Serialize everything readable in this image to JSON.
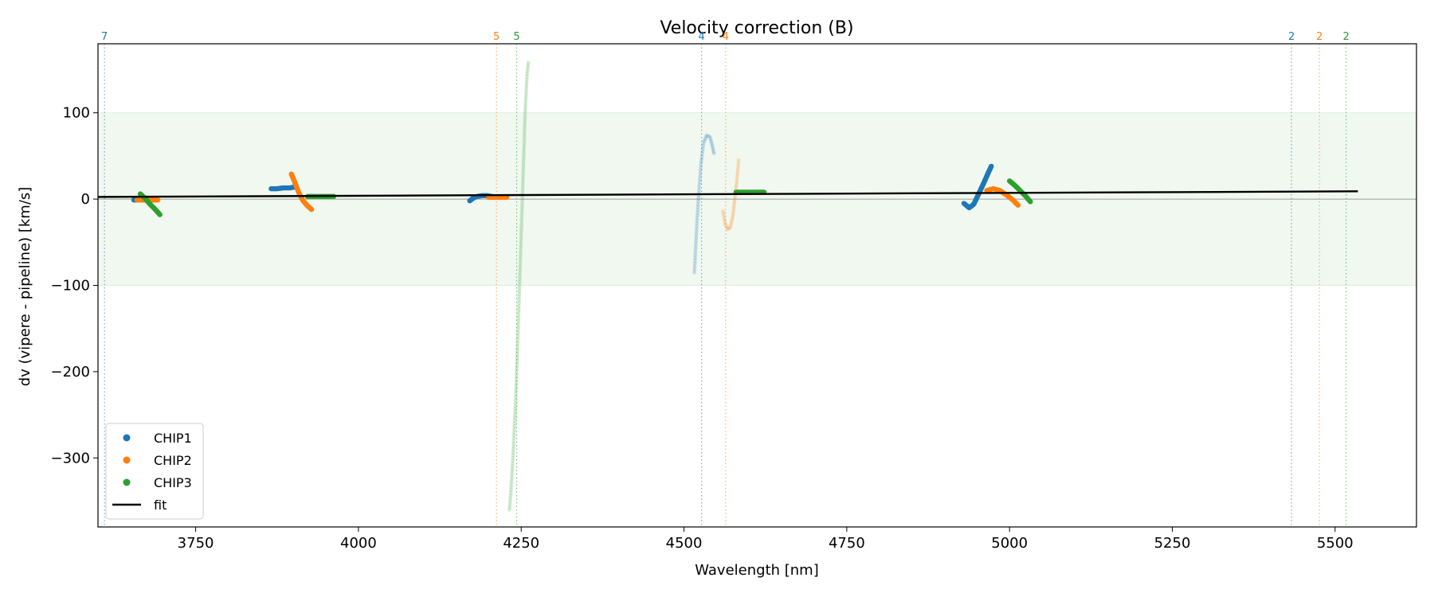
{
  "chart_data": {
    "type": "scatter",
    "title": "Velocity correction (B)",
    "xlabel": "Wavelength [nm]",
    "ylabel": "dv (vipere - pipeline) [km/s]",
    "xlim": [
      3600,
      5625
    ],
    "ylim": [
      -380,
      180
    ],
    "xticks": [
      3750,
      4000,
      4250,
      4500,
      4750,
      5000,
      5250,
      5500
    ],
    "yticks": [
      -300,
      -200,
      -100,
      0,
      100
    ],
    "band": [
      -100,
      100
    ],
    "colors": {
      "CHIP1": "#1f77b4",
      "CHIP2": "#ff7f0e",
      "CHIP3": "#2ca02c",
      "fit": "#000000",
      "band": "#2ca02c"
    },
    "legend": [
      "CHIP1",
      "CHIP2",
      "CHIP3",
      "fit"
    ],
    "fit": {
      "x": [
        3600,
        5535
      ],
      "y": [
        2.5,
        9
      ]
    },
    "markers": [
      {
        "x": 3610,
        "label": "7",
        "series": "CHIP1"
      },
      {
        "x": 4212,
        "label": "5",
        "series": "CHIP2"
      },
      {
        "x": 4243,
        "label": "5",
        "series": "CHIP3"
      },
      {
        "x": 4527,
        "label": "4",
        "series": "CHIP1"
      },
      {
        "x": 4564,
        "label": "4",
        "series": "CHIP2"
      },
      {
        "x": 5433,
        "label": "2",
        "series": "CHIP1"
      },
      {
        "x": 5476,
        "label": "2",
        "series": "CHIP2"
      },
      {
        "x": 5517,
        "label": "2",
        "series": "CHIP3"
      }
    ],
    "segments": [
      {
        "series": "CHIP1",
        "faded": false,
        "points": [
          [
            3655,
            -1
          ],
          [
            3665,
            -1
          ],
          [
            3675,
            -1
          ],
          [
            3685,
            -1
          ]
        ]
      },
      {
        "series": "CHIP2",
        "faded": false,
        "points": [
          [
            3660,
            -1
          ],
          [
            3670,
            -1
          ],
          [
            3680,
            -1
          ],
          [
            3692,
            -1
          ]
        ]
      },
      {
        "series": "CHIP3",
        "faded": false,
        "points": [
          [
            3665,
            6
          ],
          [
            3672,
            1
          ],
          [
            3680,
            -6
          ],
          [
            3688,
            -12
          ],
          [
            3695,
            -18
          ]
        ]
      },
      {
        "series": "CHIP1",
        "faded": false,
        "points": [
          [
            3866,
            12
          ],
          [
            3875,
            12
          ],
          [
            3885,
            13
          ],
          [
            3895,
            13
          ],
          [
            3902,
            14
          ]
        ]
      },
      {
        "series": "CHIP2",
        "faded": false,
        "points": [
          [
            3897,
            29
          ],
          [
            3902,
            20
          ],
          [
            3908,
            8
          ],
          [
            3915,
            -2
          ],
          [
            3922,
            -8
          ],
          [
            3928,
            -12
          ]
        ]
      },
      {
        "series": "CHIP3",
        "faded": false,
        "points": [
          [
            3922,
            3
          ],
          [
            3932,
            3
          ],
          [
            3942,
            3
          ],
          [
            3952,
            3
          ],
          [
            3962,
            3
          ]
        ]
      },
      {
        "series": "CHIP1",
        "faded": false,
        "points": [
          [
            4171,
            -2
          ],
          [
            4176,
            1
          ],
          [
            4182,
            3
          ],
          [
            4190,
            4
          ],
          [
            4198,
            4
          ],
          [
            4205,
            3
          ]
        ]
      },
      {
        "series": "CHIP2",
        "faded": false,
        "points": [
          [
            4200,
            2
          ],
          [
            4210,
            2
          ],
          [
            4220,
            2
          ],
          [
            4228,
            2
          ]
        ]
      },
      {
        "series": "CHIP3",
        "faded": true,
        "points": [
          [
            4232,
            -360
          ],
          [
            4235,
            -330
          ],
          [
            4238,
            -290
          ],
          [
            4241,
            -240
          ],
          [
            4244,
            -180
          ],
          [
            4247,
            -110
          ],
          [
            4250,
            -40
          ],
          [
            4253,
            30
          ],
          [
            4256,
            100
          ],
          [
            4259,
            145
          ],
          [
            4261,
            158
          ]
        ]
      },
      {
        "series": "CHIP1",
        "faded": true,
        "points": [
          [
            4516,
            -85
          ],
          [
            4518,
            -55
          ],
          [
            4520,
            -25
          ],
          [
            4523,
            10
          ],
          [
            4526,
            40
          ],
          [
            4530,
            65
          ],
          [
            4535,
            74
          ],
          [
            4540,
            72
          ],
          [
            4544,
            60
          ],
          [
            4546,
            53
          ]
        ]
      },
      {
        "series": "CHIP2",
        "faded": true,
        "points": [
          [
            4560,
            -14
          ],
          [
            4563,
            -28
          ],
          [
            4567,
            -35
          ],
          [
            4571,
            -33
          ],
          [
            4575,
            -20
          ],
          [
            4578,
            0
          ],
          [
            4581,
            20
          ],
          [
            4584,
            45
          ]
        ]
      },
      {
        "series": "CHIP3",
        "faded": false,
        "points": [
          [
            4580,
            8
          ],
          [
            4592,
            8
          ],
          [
            4604,
            8
          ],
          [
            4615,
            8
          ],
          [
            4623,
            8
          ]
        ]
      },
      {
        "series": "CHIP1",
        "faded": false,
        "points": [
          [
            4930,
            -5
          ],
          [
            4938,
            -10
          ],
          [
            4945,
            -6
          ],
          [
            4952,
            5
          ],
          [
            4960,
            18
          ],
          [
            4967,
            30
          ],
          [
            4972,
            38
          ]
        ]
      },
      {
        "series": "CHIP2",
        "faded": false,
        "points": [
          [
            4965,
            10
          ],
          [
            4975,
            12
          ],
          [
            4985,
            10
          ],
          [
            4995,
            5
          ],
          [
            5005,
            -1
          ],
          [
            5013,
            -7
          ]
        ]
      },
      {
        "series": "CHIP3",
        "faded": false,
        "points": [
          [
            5000,
            21
          ],
          [
            5008,
            16
          ],
          [
            5016,
            10
          ],
          [
            5024,
            4
          ],
          [
            5032,
            -3
          ]
        ]
      }
    ]
  }
}
